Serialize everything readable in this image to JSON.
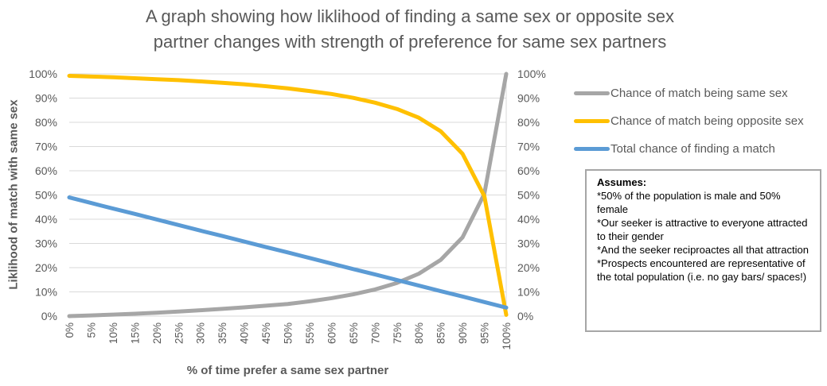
{
  "header": {
    "title_line1": "A graph showing how liklihood of finding a same sex or opposite sex",
    "title_line2": "partner changes with strength of preference for same sex partners"
  },
  "chart_data": {
    "type": "line",
    "title": "A graph showing how liklihood of finding a same sex or opposite sex partner changes with strength of preference for same sex partners",
    "xlabel": "% of time prefer a same sex partner",
    "ylabel": "Liklihood of match with same sex",
    "x_values": [
      0,
      5,
      10,
      15,
      20,
      25,
      30,
      35,
      40,
      45,
      50,
      55,
      60,
      65,
      70,
      75,
      80,
      85,
      90,
      95,
      100
    ],
    "x_tick_labels": [
      "0%",
      "5%",
      "10%",
      "15%",
      "20%",
      "25%",
      "30%",
      "35%",
      "40%",
      "45%",
      "50%",
      "55%",
      "60%",
      "65%",
      "70%",
      "75%",
      "80%",
      "85%",
      "90%",
      "95%",
      "100%"
    ],
    "y_axis": {
      "min": 0,
      "max": 100,
      "step": 10,
      "tick_format": "percent",
      "shown_on": "both"
    },
    "grid": "horizontal",
    "legend_position": "right",
    "series": [
      {
        "name": "Chance of match being same sex",
        "color": "#A6A6A6",
        "values": [
          0,
          0.3,
          0.6,
          1.0,
          1.4,
          1.9,
          2.4,
          3.0,
          3.6,
          4.3,
          5.0,
          6.1,
          7.4,
          9.0,
          11.0,
          13.7,
          17.5,
          23.2,
          32.5,
          50.5,
          100
        ]
      },
      {
        "name": "Chance of match being opposite sex",
        "color": "#FFC000",
        "values": [
          99.2,
          98.9,
          98.6,
          98.2,
          97.8,
          97.4,
          96.9,
          96.3,
          95.7,
          94.9,
          94.0,
          92.9,
          91.7,
          90.1,
          88.1,
          85.5,
          81.9,
          76.3,
          67.0,
          49.5,
          0.5
        ]
      },
      {
        "name": "Total chance of finding a match",
        "color": "#5B9BD5",
        "values": [
          49.0,
          46.7,
          44.4,
          42.2,
          39.9,
          37.6,
          35.3,
          33.1,
          30.8,
          28.5,
          26.3,
          24.0,
          21.7,
          19.4,
          17.2,
          14.9,
          12.6,
          10.3,
          8.1,
          5.8,
          3.5
        ]
      }
    ]
  },
  "assumptions_box": {
    "heading": "Assumes:",
    "items": [
      "*50% of the population is male and 50% female",
      "*Our seeker is attractive to everyone attracted to their gender",
      "*And the seeker reciproactes all that attraction",
      "*Prospects encountered are representative of the total population (i.e. no gay bars/ spaces!)"
    ]
  },
  "colors": {
    "text": "#595959",
    "gridline": "#D9D9D9",
    "box_border": "#A6A6A6",
    "box_text": "#000000"
  }
}
